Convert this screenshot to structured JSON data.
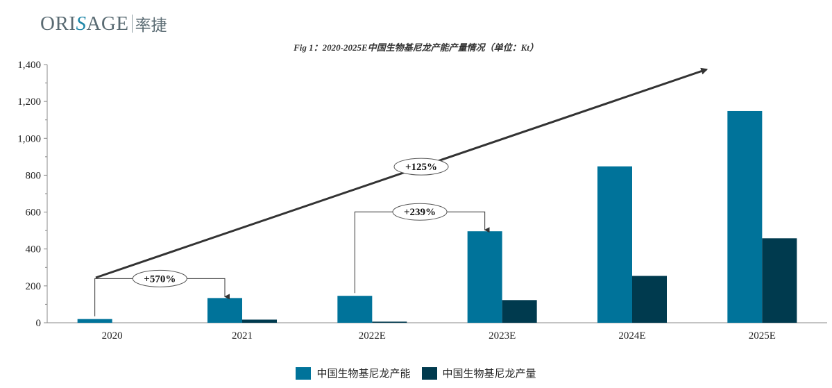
{
  "logo": {
    "brand_pre": "ORI",
    "brand_s": "S",
    "brand_post": "AGE",
    "brand_cn": "率捷"
  },
  "colors": {
    "capacity": "#00739a",
    "output": "#003a4e",
    "axis": "#888888",
    "arrow": "#333333"
  },
  "chart_data": {
    "type": "bar",
    "title": "Fig 1：2020-2025E中国生物基尼龙产能产量情况（单位：Kt）",
    "categories": [
      "2020",
      "2021",
      "2022E",
      "2023E",
      "2024E",
      "2025E"
    ],
    "series": [
      {
        "name": "中国生物基尼龙产能",
        "values": [
          20,
          134,
          146,
          496,
          848,
          1148
        ]
      },
      {
        "name": "中国生物基尼龙产量",
        "values": [
          0,
          17,
          6,
          123,
          254,
          458
        ]
      }
    ],
    "ylim": [
      0,
      1400
    ],
    "yticks": [
      "0",
      "200",
      "400",
      "600",
      "800",
      "1,000",
      "1,200",
      "1,400"
    ],
    "ytick_values": [
      0,
      200,
      400,
      600,
      800,
      1000,
      1200,
      1400
    ],
    "annotations": [
      {
        "label": "+570%",
        "from_category": 0,
        "to_category": 1
      },
      {
        "label": "+239%",
        "from_category": 2,
        "to_category": 3
      },
      {
        "label": "+125%",
        "trend_from": 0,
        "trend_to": 5
      }
    ]
  }
}
